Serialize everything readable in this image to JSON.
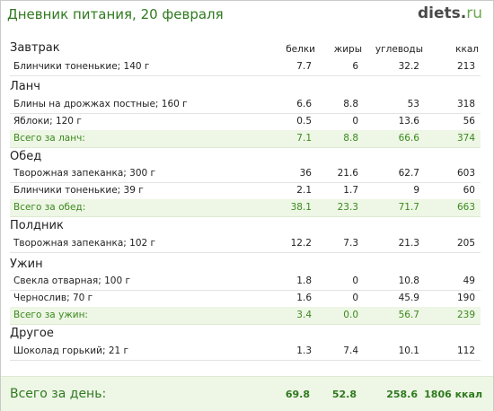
{
  "header": {
    "title": "Дневник питания, 20 февраля",
    "logo_main": "diets",
    "logo_dot": ".",
    "logo_tld": "ru"
  },
  "columns": {
    "protein": "белки",
    "fat": "жиры",
    "carbs": "углеводы",
    "kcal": "ккал"
  },
  "meals": [
    {
      "name": "Завтрак",
      "items": [
        {
          "name": "Блинчики тоненькие; 140 г",
          "protein": "7.7",
          "fat": "6",
          "carbs": "32.2",
          "kcal": "213"
        }
      ]
    },
    {
      "name": "Ланч",
      "items": [
        {
          "name": "Блины на дрожжах постные; 160 г",
          "protein": "6.6",
          "fat": "8.8",
          "carbs": "53",
          "kcal": "318"
        },
        {
          "name": "Яблоки; 120 г",
          "protein": "0.5",
          "fat": "0",
          "carbs": "13.6",
          "kcal": "56"
        }
      ],
      "total": {
        "name": "Всего за ланч:",
        "protein": "7.1",
        "fat": "8.8",
        "carbs": "66.6",
        "kcal": "374"
      }
    },
    {
      "name": "Обед",
      "items": [
        {
          "name": "Творожная запеканка; 300 г",
          "protein": "36",
          "fat": "21.6",
          "carbs": "62.7",
          "kcal": "603"
        },
        {
          "name": "Блинчики тоненькие; 39 г",
          "protein": "2.1",
          "fat": "1.7",
          "carbs": "9",
          "kcal": "60"
        }
      ],
      "total": {
        "name": "Всего за обед:",
        "protein": "38.1",
        "fat": "23.3",
        "carbs": "71.7",
        "kcal": "663"
      }
    },
    {
      "name": "Полдник",
      "items": [
        {
          "name": "Творожная запеканка; 102 г",
          "protein": "12.2",
          "fat": "7.3",
          "carbs": "21.3",
          "kcal": "205"
        }
      ]
    },
    {
      "name": "Ужин",
      "items": [
        {
          "name": "Свекла отварная; 100 г",
          "protein": "1.8",
          "fat": "0",
          "carbs": "10.8",
          "kcal": "49"
        },
        {
          "name": "Чернослив; 70 г",
          "protein": "1.6",
          "fat": "0",
          "carbs": "45.9",
          "kcal": "190"
        }
      ],
      "total": {
        "name": "Всего за ужин:",
        "protein": "3.4",
        "fat": "0.0",
        "carbs": "56.7",
        "kcal": "239"
      }
    },
    {
      "name": "Другое",
      "items": [
        {
          "name": "Шоколад горький; 21 г",
          "protein": "1.3",
          "fat": "7.4",
          "carbs": "10.1",
          "kcal": "112"
        }
      ]
    }
  ],
  "day_total": {
    "label": "Всего за день:",
    "protein": "69.8",
    "fat": "52.8",
    "carbs": "258.6",
    "kcal": "1806 ккал"
  },
  "colors": {
    "accent_green": "#2f7a1f",
    "total_bg": "#eef6e6"
  }
}
